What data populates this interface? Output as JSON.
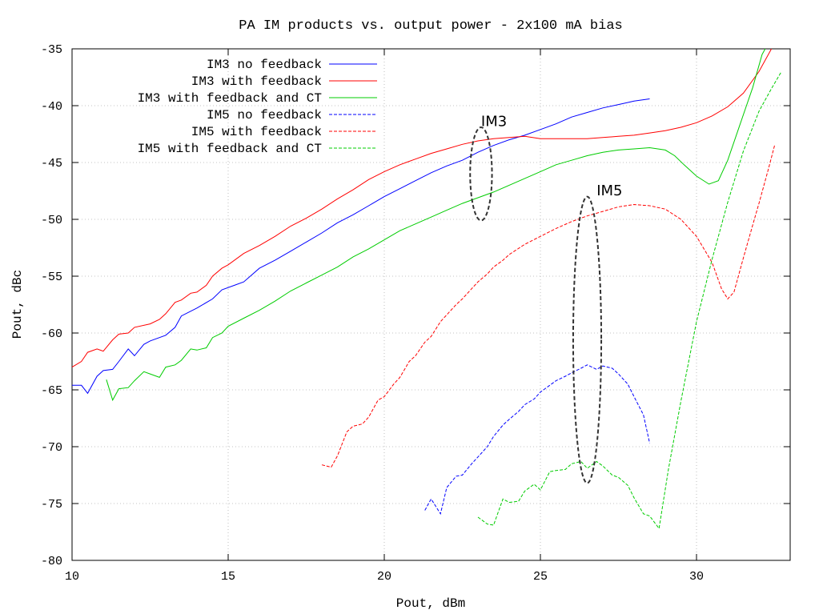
{
  "chart_data": {
    "type": "line",
    "title": "PA IM products vs. output power - 2x100 mA bias",
    "xlabel": "Pout, dBm",
    "ylabel": "Pout, dBc",
    "xlim": [
      10,
      33
    ],
    "ylim": [
      -80,
      -35
    ],
    "xticks": [
      10,
      15,
      20,
      25,
      30
    ],
    "yticks": [
      -80,
      -75,
      -70,
      -65,
      -60,
      -55,
      -50,
      -45,
      -40,
      -35
    ],
    "grid": true,
    "legend_position": "top-left",
    "series": [
      {
        "name": "IM3 no feedback",
        "color": "#0000ff",
        "dash": "solid",
        "points": [
          [
            10,
            -64.6
          ],
          [
            10.3,
            -64.6
          ],
          [
            10.5,
            -65.3
          ],
          [
            10.8,
            -63.8
          ],
          [
            11.0,
            -63.3
          ],
          [
            11.3,
            -63.2
          ],
          [
            11.5,
            -62.5
          ],
          [
            11.8,
            -61.4
          ],
          [
            12.0,
            -62.0
          ],
          [
            12.3,
            -61.0
          ],
          [
            12.5,
            -60.7
          ],
          [
            13.0,
            -60.2
          ],
          [
            13.3,
            -59.5
          ],
          [
            13.5,
            -58.5
          ],
          [
            14.0,
            -57.8
          ],
          [
            14.5,
            -57.0
          ],
          [
            14.8,
            -56.2
          ],
          [
            15.2,
            -55.8
          ],
          [
            15.5,
            -55.5
          ],
          [
            16.0,
            -54.3
          ],
          [
            16.5,
            -53.6
          ],
          [
            17.0,
            -52.8
          ],
          [
            17.5,
            -52.0
          ],
          [
            18.0,
            -51.2
          ],
          [
            18.5,
            -50.3
          ],
          [
            19.0,
            -49.6
          ],
          [
            19.5,
            -48.8
          ],
          [
            20.0,
            -48.0
          ],
          [
            20.5,
            -47.3
          ],
          [
            21.0,
            -46.6
          ],
          [
            21.5,
            -45.9
          ],
          [
            22.0,
            -45.3
          ],
          [
            22.5,
            -44.8
          ],
          [
            23.0,
            -44.1
          ],
          [
            23.5,
            -43.5
          ],
          [
            24.0,
            -43.0
          ],
          [
            24.5,
            -42.6
          ],
          [
            25.0,
            -42.1
          ],
          [
            25.5,
            -41.6
          ],
          [
            26.0,
            -41.0
          ],
          [
            26.5,
            -40.6
          ],
          [
            27.0,
            -40.2
          ],
          [
            27.5,
            -39.9
          ],
          [
            28.0,
            -39.6
          ],
          [
            28.5,
            -39.4
          ]
        ]
      },
      {
        "name": "IM3 with feedback",
        "color": "#ff0000",
        "dash": "solid",
        "points": [
          [
            10,
            -63.0
          ],
          [
            10.3,
            -62.5
          ],
          [
            10.5,
            -61.7
          ],
          [
            10.8,
            -61.4
          ],
          [
            11.0,
            -61.6
          ],
          [
            11.3,
            -60.6
          ],
          [
            11.5,
            -60.1
          ],
          [
            11.8,
            -60.0
          ],
          [
            12.0,
            -59.5
          ],
          [
            12.5,
            -59.2
          ],
          [
            12.8,
            -58.8
          ],
          [
            13.0,
            -58.3
          ],
          [
            13.3,
            -57.3
          ],
          [
            13.5,
            -57.1
          ],
          [
            13.8,
            -56.5
          ],
          [
            14.0,
            -56.4
          ],
          [
            14.3,
            -55.8
          ],
          [
            14.5,
            -55.0
          ],
          [
            14.8,
            -54.3
          ],
          [
            15.0,
            -54.0
          ],
          [
            15.5,
            -53.0
          ],
          [
            16.0,
            -52.3
          ],
          [
            16.5,
            -51.5
          ],
          [
            17.0,
            -50.6
          ],
          [
            17.5,
            -49.9
          ],
          [
            18.0,
            -49.1
          ],
          [
            18.5,
            -48.2
          ],
          [
            19.0,
            -47.4
          ],
          [
            19.5,
            -46.5
          ],
          [
            20.0,
            -45.8
          ],
          [
            20.5,
            -45.2
          ],
          [
            21.0,
            -44.7
          ],
          [
            21.5,
            -44.2
          ],
          [
            22.0,
            -43.8
          ],
          [
            22.5,
            -43.4
          ],
          [
            23.0,
            -43.1
          ],
          [
            23.5,
            -42.9
          ],
          [
            24.0,
            -42.8
          ],
          [
            24.5,
            -42.7
          ],
          [
            25.0,
            -42.9
          ],
          [
            25.5,
            -42.9
          ],
          [
            26.0,
            -42.9
          ],
          [
            26.5,
            -42.9
          ],
          [
            27.0,
            -42.8
          ],
          [
            27.5,
            -42.7
          ],
          [
            28.0,
            -42.6
          ],
          [
            28.5,
            -42.4
          ],
          [
            29.0,
            -42.2
          ],
          [
            29.5,
            -41.9
          ],
          [
            30.0,
            -41.5
          ],
          [
            30.5,
            -40.9
          ],
          [
            31.0,
            -40.1
          ],
          [
            31.5,
            -38.9
          ],
          [
            32.0,
            -37.0
          ],
          [
            32.4,
            -35.0
          ]
        ]
      },
      {
        "name": "IM3 with feedback and CT",
        "color": "#00cc00",
        "dash": "solid",
        "points": [
          [
            11.1,
            -64.1
          ],
          [
            11.3,
            -65.9
          ],
          [
            11.5,
            -64.9
          ],
          [
            11.8,
            -64.8
          ],
          [
            12.0,
            -64.2
          ],
          [
            12.3,
            -63.4
          ],
          [
            12.5,
            -63.6
          ],
          [
            12.8,
            -63.9
          ],
          [
            13.0,
            -63.0
          ],
          [
            13.3,
            -62.8
          ],
          [
            13.5,
            -62.4
          ],
          [
            13.8,
            -61.4
          ],
          [
            14.0,
            -61.5
          ],
          [
            14.3,
            -61.3
          ],
          [
            14.5,
            -60.4
          ],
          [
            14.8,
            -60.0
          ],
          [
            15.0,
            -59.4
          ],
          [
            15.5,
            -58.7
          ],
          [
            16.0,
            -58.0
          ],
          [
            16.5,
            -57.2
          ],
          [
            17.0,
            -56.3
          ],
          [
            17.5,
            -55.6
          ],
          [
            18.0,
            -54.9
          ],
          [
            18.5,
            -54.2
          ],
          [
            19.0,
            -53.3
          ],
          [
            19.5,
            -52.6
          ],
          [
            20.0,
            -51.8
          ],
          [
            20.5,
            -51.0
          ],
          [
            21.0,
            -50.4
          ],
          [
            21.5,
            -49.8
          ],
          [
            22.0,
            -49.2
          ],
          [
            22.5,
            -48.6
          ],
          [
            23.0,
            -48.1
          ],
          [
            23.5,
            -47.6
          ],
          [
            24.0,
            -47.0
          ],
          [
            24.5,
            -46.4
          ],
          [
            25.0,
            -45.8
          ],
          [
            25.5,
            -45.2
          ],
          [
            26.0,
            -44.8
          ],
          [
            26.5,
            -44.4
          ],
          [
            27.0,
            -44.1
          ],
          [
            27.5,
            -43.9
          ],
          [
            28.0,
            -43.8
          ],
          [
            28.5,
            -43.7
          ],
          [
            29.0,
            -43.9
          ],
          [
            29.3,
            -44.4
          ],
          [
            29.6,
            -45.2
          ],
          [
            30.0,
            -46.2
          ],
          [
            30.4,
            -46.9
          ],
          [
            30.7,
            -46.6
          ],
          [
            31.0,
            -44.8
          ],
          [
            31.4,
            -41.6
          ],
          [
            31.8,
            -38.4
          ],
          [
            32.1,
            -35.5
          ],
          [
            32.2,
            -35.0
          ]
        ]
      },
      {
        "name": "IM5 no feedback",
        "color": "#0000ff",
        "dash": "dashed",
        "points": [
          [
            21.3,
            -75.6
          ],
          [
            21.5,
            -74.6
          ],
          [
            21.8,
            -75.9
          ],
          [
            22.0,
            -73.6
          ],
          [
            22.3,
            -72.6
          ],
          [
            22.5,
            -72.5
          ],
          [
            22.8,
            -71.5
          ],
          [
            23.0,
            -70.9
          ],
          [
            23.3,
            -70.0
          ],
          [
            23.5,
            -69.1
          ],
          [
            23.8,
            -68.1
          ],
          [
            24.0,
            -67.6
          ],
          [
            24.3,
            -66.9
          ],
          [
            24.5,
            -66.3
          ],
          [
            24.8,
            -65.8
          ],
          [
            25.0,
            -65.2
          ],
          [
            25.3,
            -64.6
          ],
          [
            25.5,
            -64.2
          ],
          [
            25.8,
            -63.8
          ],
          [
            26.0,
            -63.5
          ],
          [
            26.3,
            -63.1
          ],
          [
            26.5,
            -62.8
          ],
          [
            26.8,
            -63.2
          ],
          [
            27.0,
            -62.9
          ],
          [
            27.3,
            -63.1
          ],
          [
            27.5,
            -63.6
          ],
          [
            27.8,
            -64.5
          ],
          [
            28.0,
            -65.6
          ],
          [
            28.3,
            -67.2
          ],
          [
            28.5,
            -69.7
          ]
        ]
      },
      {
        "name": "IM5 with feedback",
        "color": "#ff0000",
        "dash": "dashed",
        "points": [
          [
            18.0,
            -71.6
          ],
          [
            18.3,
            -71.8
          ],
          [
            18.5,
            -70.8
          ],
          [
            18.8,
            -68.7
          ],
          [
            19.0,
            -68.2
          ],
          [
            19.3,
            -68.0
          ],
          [
            19.5,
            -67.4
          ],
          [
            19.8,
            -65.9
          ],
          [
            20.0,
            -65.6
          ],
          [
            20.3,
            -64.5
          ],
          [
            20.5,
            -63.9
          ],
          [
            20.8,
            -62.5
          ],
          [
            21.0,
            -62.0
          ],
          [
            21.3,
            -60.8
          ],
          [
            21.5,
            -60.3
          ],
          [
            21.8,
            -59.0
          ],
          [
            22.0,
            -58.4
          ],
          [
            22.3,
            -57.5
          ],
          [
            22.5,
            -57.0
          ],
          [
            22.8,
            -56.1
          ],
          [
            23.0,
            -55.5
          ],
          [
            23.3,
            -54.8
          ],
          [
            23.5,
            -54.2
          ],
          [
            23.8,
            -53.6
          ],
          [
            24.0,
            -53.1
          ],
          [
            24.5,
            -52.2
          ],
          [
            25.0,
            -51.5
          ],
          [
            25.5,
            -50.8
          ],
          [
            26.0,
            -50.2
          ],
          [
            26.5,
            -49.7
          ],
          [
            27.0,
            -49.3
          ],
          [
            27.5,
            -48.9
          ],
          [
            28.0,
            -48.7
          ],
          [
            28.5,
            -48.8
          ],
          [
            29.0,
            -49.1
          ],
          [
            29.5,
            -50.0
          ],
          [
            30.0,
            -51.5
          ],
          [
            30.5,
            -53.8
          ],
          [
            30.8,
            -56.1
          ],
          [
            31.0,
            -57.0
          ],
          [
            31.2,
            -56.4
          ],
          [
            31.5,
            -53.4
          ],
          [
            31.8,
            -50.5
          ],
          [
            32.0,
            -48.6
          ],
          [
            32.3,
            -45.6
          ],
          [
            32.5,
            -43.5
          ]
        ]
      },
      {
        "name": "IM5 with feedback and CT",
        "color": "#00cc00",
        "dash": "dashed",
        "points": [
          [
            23.0,
            -76.2
          ],
          [
            23.3,
            -76.8
          ],
          [
            23.5,
            -76.9
          ],
          [
            23.8,
            -74.6
          ],
          [
            24.0,
            -74.9
          ],
          [
            24.3,
            -74.8
          ],
          [
            24.5,
            -73.9
          ],
          [
            24.8,
            -73.3
          ],
          [
            25.0,
            -73.8
          ],
          [
            25.3,
            -72.2
          ],
          [
            25.5,
            -72.1
          ],
          [
            25.8,
            -72.0
          ],
          [
            26.0,
            -71.5
          ],
          [
            26.3,
            -71.3
          ],
          [
            26.5,
            -71.9
          ],
          [
            26.8,
            -71.3
          ],
          [
            27.0,
            -71.7
          ],
          [
            27.3,
            -72.5
          ],
          [
            27.5,
            -72.7
          ],
          [
            27.8,
            -73.4
          ],
          [
            28.0,
            -74.5
          ],
          [
            28.3,
            -75.9
          ],
          [
            28.5,
            -76.1
          ],
          [
            28.8,
            -77.2
          ],
          [
            29.1,
            -72.0
          ],
          [
            29.5,
            -66.0
          ],
          [
            30.0,
            -59.0
          ],
          [
            30.5,
            -53.5
          ],
          [
            31.0,
            -48.5
          ],
          [
            31.5,
            -44.0
          ],
          [
            32.0,
            -40.5
          ],
          [
            32.4,
            -38.5
          ],
          [
            32.7,
            -37.1
          ]
        ]
      }
    ],
    "annotations": [
      {
        "text": "IM3",
        "x": 23.1,
        "y": -41.8,
        "ellipse": {
          "cx": 23.1,
          "cy": -46.0,
          "rx": 0.35,
          "ry": 4.1
        }
      },
      {
        "text": "IM5",
        "x": 26.8,
        "y": -47.9,
        "ellipse": {
          "cx": 26.5,
          "cy": -60.6,
          "rx": 0.45,
          "ry": 12.6
        }
      }
    ]
  }
}
